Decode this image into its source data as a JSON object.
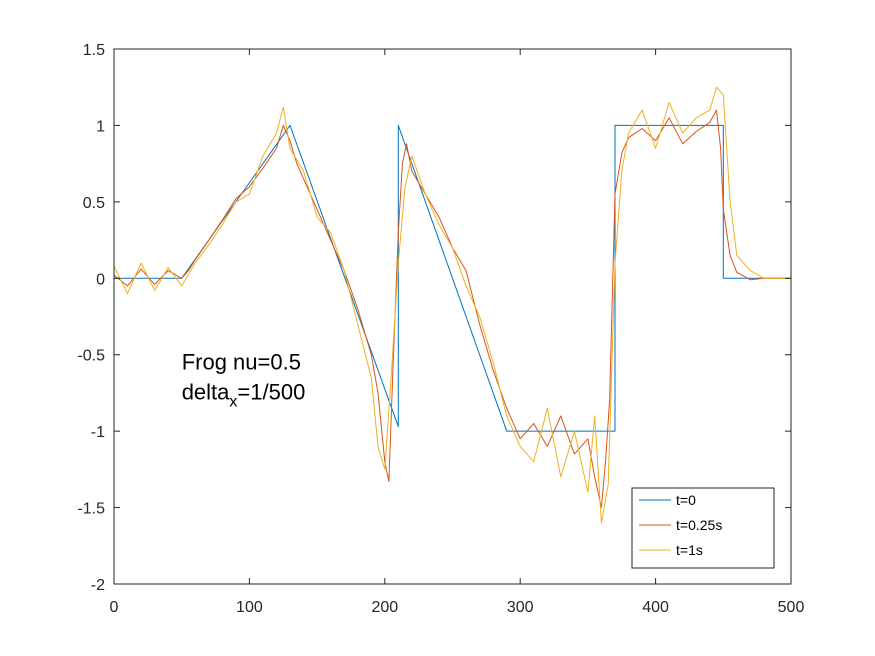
{
  "chart_data": {
    "type": "line",
    "title": "",
    "xlabel": "",
    "ylabel": "",
    "xlim": [
      0,
      500
    ],
    "ylim": [
      -2,
      1.5
    ],
    "x_ticks": [
      0,
      100,
      200,
      300,
      400,
      500
    ],
    "y_ticks": [
      -2,
      -1.5,
      -1,
      -0.5,
      0,
      0.5,
      1,
      1.5
    ],
    "x_tick_labels": [
      "0",
      "100",
      "200",
      "300",
      "400",
      "500"
    ],
    "y_tick_labels": [
      "-2",
      "-1.5",
      "-1",
      "-0.5",
      "0",
      "0.5",
      "1",
      "1.5"
    ],
    "grid": false,
    "legend_position": "bottom-right",
    "annotation": {
      "line1": "Frog nu=0.5",
      "line2_prefix": "delta",
      "line2_subscript": "x",
      "line2_suffix": "=1/500",
      "x": 50,
      "y": -0.55
    },
    "series": [
      {
        "name": "t=0",
        "color": "#0072BD",
        "x": [
          0,
          50,
          130,
          210,
          210,
          290,
          370,
          370,
          450,
          450,
          500
        ],
        "y": [
          0,
          0,
          1,
          -0.97,
          1,
          -1,
          -1,
          1,
          1,
          0,
          0
        ]
      },
      {
        "name": "t=0.25s",
        "color": "#D95319",
        "x": [
          0,
          10,
          20,
          30,
          40,
          50,
          55,
          60,
          70,
          80,
          90,
          100,
          110,
          120,
          125,
          130,
          135,
          140,
          150,
          160,
          170,
          180,
          190,
          195,
          200,
          203,
          206,
          210,
          213,
          216,
          220,
          230,
          240,
          250,
          260,
          270,
          280,
          290,
          300,
          310,
          320,
          330,
          340,
          350,
          355,
          360,
          363,
          366,
          370,
          375,
          380,
          390,
          400,
          410,
          420,
          430,
          440,
          445,
          448,
          450,
          455,
          460,
          470,
          480,
          490,
          500
        ],
        "y": [
          0.02,
          -0.05,
          0.06,
          -0.04,
          0.05,
          0.0,
          0.05,
          0.12,
          0.25,
          0.38,
          0.52,
          0.6,
          0.72,
          0.85,
          1.0,
          0.9,
          0.75,
          0.65,
          0.45,
          0.25,
          0.05,
          -0.2,
          -0.5,
          -0.75,
          -1.2,
          -1.33,
          -0.6,
          0.3,
          0.75,
          0.88,
          0.7,
          0.55,
          0.4,
          0.2,
          0.05,
          -0.3,
          -0.6,
          -0.85,
          -1.05,
          -0.95,
          -1.1,
          -0.9,
          -1.15,
          -1.05,
          -1.3,
          -1.5,
          -1.2,
          -0.8,
          0.55,
          0.82,
          0.92,
          0.98,
          0.9,
          1.05,
          0.88,
          0.96,
          1.02,
          1.1,
          0.85,
          0.45,
          0.15,
          0.04,
          -0.01,
          0.0,
          0.0,
          0.0
        ]
      },
      {
        "name": "t=1s",
        "color": "#EDB120",
        "x": [
          0,
          10,
          20,
          30,
          40,
          50,
          60,
          70,
          80,
          90,
          100,
          110,
          120,
          125,
          130,
          140,
          150,
          160,
          170,
          180,
          190,
          195,
          200,
          205,
          210,
          215,
          220,
          230,
          240,
          250,
          260,
          270,
          280,
          290,
          300,
          310,
          320,
          330,
          340,
          350,
          355,
          360,
          365,
          370,
          375,
          380,
          390,
          400,
          410,
          420,
          430,
          440,
          445,
          450,
          455,
          460,
          470,
          480,
          490,
          500
        ],
        "y": [
          0.08,
          -0.1,
          0.1,
          -0.08,
          0.07,
          -0.05,
          0.1,
          0.22,
          0.35,
          0.5,
          0.55,
          0.8,
          0.95,
          1.12,
          0.85,
          0.7,
          0.4,
          0.3,
          0.05,
          -0.3,
          -0.65,
          -1.1,
          -1.25,
          -0.6,
          0.1,
          0.6,
          0.8,
          0.55,
          0.35,
          0.2,
          -0.05,
          -0.25,
          -0.55,
          -0.9,
          -1.1,
          -1.2,
          -0.85,
          -1.3,
          -1.0,
          -1.4,
          -0.9,
          -1.6,
          -1.35,
          0.1,
          0.7,
          0.95,
          1.1,
          0.85,
          1.15,
          0.95,
          1.05,
          1.1,
          1.25,
          1.2,
          0.5,
          0.15,
          0.05,
          0.0,
          0.0,
          0.0
        ]
      }
    ]
  }
}
